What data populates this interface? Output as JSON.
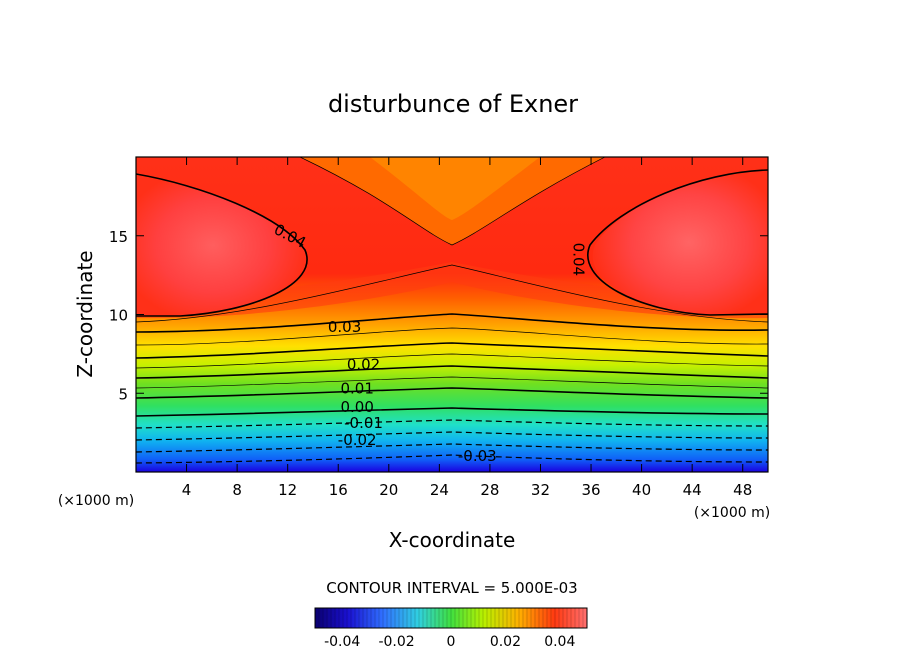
{
  "chart_data": {
    "type": "contour",
    "title": "disturbunce of Exner",
    "xlabel": "X-coordinate",
    "ylabel": "Z-coordinate",
    "x_unit": "(×1000 m)",
    "y_unit": "(×1000 m)",
    "xlim": [
      0,
      50
    ],
    "ylim": [
      0,
      20
    ],
    "x_ticks": [
      4,
      8,
      12,
      16,
      20,
      24,
      28,
      32,
      36,
      40,
      44,
      48
    ],
    "y_ticks": [
      5,
      10,
      15
    ],
    "contour_interval_text": "CONTOUR INTERVAL = 5.000E-03",
    "contour_labels": [
      {
        "text": "0.04",
        "x": 12,
        "z": 14.7
      },
      {
        "text": "0.04",
        "x": 34.6,
        "z": 13.5
      },
      {
        "text": "0.03",
        "x": 16.5,
        "z": 8.9
      },
      {
        "text": "0.02",
        "x": 18,
        "z": 6.5
      },
      {
        "text": "0.01",
        "x": 17.5,
        "z": 5
      },
      {
        "text": "0.00",
        "x": 17.5,
        "z": 3.8
      },
      {
        "text": "-0.01",
        "x": 18,
        "z": 2.8
      },
      {
        "text": "-0.02",
        "x": 17.5,
        "z": 1.7
      },
      {
        "text": "-0.03",
        "x": 27,
        "z": 0.7
      }
    ],
    "colorbar": {
      "min": -0.05,
      "max": 0.05,
      "tick_values": [
        -0.04,
        -0.02,
        0,
        0.02,
        0.04
      ],
      "tick_labels": [
        "-0.04",
        "-0.02",
        "0",
        "0.02",
        "0.04"
      ]
    },
    "colors": {
      "low": "#1a00e0",
      "mid": "#32e632",
      "high": "#ff2a10",
      "max": "#ff6060"
    }
  }
}
